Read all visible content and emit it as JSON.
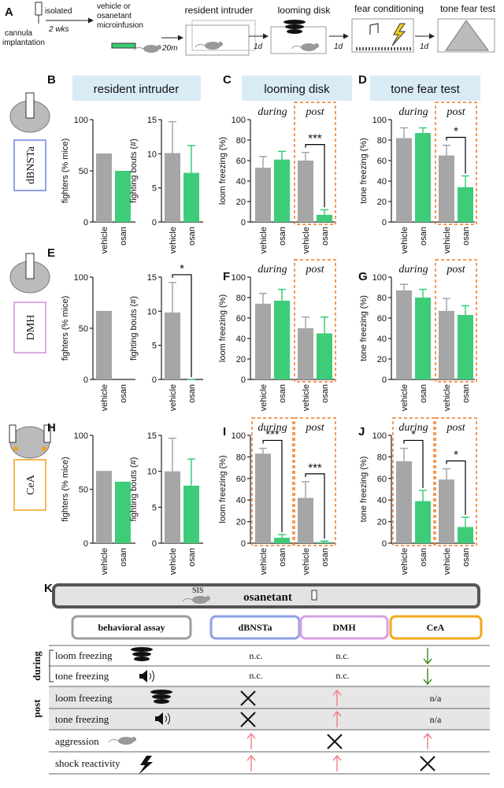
{
  "panel_a": {
    "letter": "A",
    "surgery": [
      "cannula",
      "implantation"
    ],
    "housing": "isolated",
    "duration": "2 wks",
    "treatment": [
      "vehicle or",
      "osanetant",
      "microinfusion"
    ],
    "delay": "20m",
    "steps": [
      "resident intruder",
      "looming disk",
      "fear conditioning",
      "tone fear test"
    ],
    "intervals": [
      "1d",
      "1d",
      "1d"
    ]
  },
  "row_headers": [
    "resident intruder",
    "looming disk",
    "tone fear test"
  ],
  "rows": [
    {
      "region": "dBNSTa",
      "border_color": "#6f83e3",
      "letters": [
        "B",
        "C",
        "D"
      ]
    },
    {
      "region": "DMH",
      "border_color": "#d68fe0",
      "letters": [
        "E",
        "F",
        "G"
      ]
    },
    {
      "region": "CeA",
      "border_color": "#f0a21c",
      "letters": [
        "H",
        "I",
        "J"
      ]
    }
  ],
  "chart_data": [
    {
      "type": "bar",
      "ylabel": "fighters (% mice)",
      "categories": [
        "vehicle",
        "osan"
      ],
      "values": [
        67,
        50
      ],
      "colors": [
        "#a6a6a6",
        "#3dcc78"
      ],
      "ylim": [
        0,
        100
      ],
      "yticks": [
        0,
        50,
        100
      ]
    },
    {
      "type": "bar",
      "ylabel": "fighting bouts (#)",
      "categories": [
        "vehicle",
        "osan"
      ],
      "values": [
        10.1,
        7.2
      ],
      "errors": [
        4.6,
        4
      ],
      "colors": [
        "#a6a6a6",
        "#3dcc78"
      ],
      "ylim": [
        0,
        15
      ],
      "yticks": [
        0,
        5,
        10,
        15
      ]
    },
    {
      "type": "bar",
      "ylabel": "loom freezing (%)",
      "colors": [
        "#a6a6a6",
        "#3dcc78"
      ],
      "ylim": [
        0,
        100
      ],
      "yticks": [
        0,
        20,
        40,
        60,
        80,
        100
      ],
      "groups": [
        {
          "label": "during",
          "boxed": false,
          "categories": [
            "vehicle",
            "osan"
          ],
          "values": [
            53,
            61
          ],
          "errors": [
            11,
            8
          ]
        },
        {
          "label": "post",
          "boxed": true,
          "categories": [
            "vehicle",
            "osan"
          ],
          "values": [
            60,
            7
          ],
          "errors": [
            8,
            5
          ],
          "annotation": "***"
        }
      ]
    },
    {
      "type": "bar",
      "ylabel": "tone freezing (%)",
      "colors": [
        "#a6a6a6",
        "#3dcc78"
      ],
      "ylim": [
        0,
        100
      ],
      "yticks": [
        0,
        20,
        40,
        60,
        80,
        100
      ],
      "groups": [
        {
          "label": "during",
          "boxed": false,
          "categories": [
            "vehicle",
            "osan"
          ],
          "values": [
            82,
            87
          ],
          "errors": [
            10,
            5
          ]
        },
        {
          "label": "post",
          "boxed": true,
          "categories": [
            "vehicle",
            "osan"
          ],
          "values": [
            65,
            34
          ],
          "errors": [
            10,
            11
          ],
          "annotation": "*"
        }
      ]
    },
    {
      "type": "bar",
      "ylabel": "fighters (% mice)",
      "categories": [
        "vehicle",
        "osan"
      ],
      "values": [
        67,
        0
      ],
      "colors": [
        "#a6a6a6",
        "#3dcc78"
      ],
      "ylim": [
        0,
        100
      ],
      "yticks": [
        0,
        50,
        100
      ]
    },
    {
      "type": "bar",
      "ylabel": "fighting bouts (#)",
      "categories": [
        "vehicle",
        "osan"
      ],
      "values": [
        9.8,
        0
      ],
      "errors": [
        4.4,
        0
      ],
      "annotation": "*",
      "colors": [
        "#a6a6a6",
        "#3dcc78"
      ],
      "ylim": [
        0,
        15
      ],
      "yticks": [
        0,
        5,
        10,
        15
      ]
    },
    {
      "type": "bar",
      "ylabel": "loom freezing (%)",
      "colors": [
        "#a6a6a6",
        "#3dcc78"
      ],
      "ylim": [
        0,
        100
      ],
      "yticks": [
        0,
        20,
        40,
        60,
        80,
        100
      ],
      "groups": [
        {
          "label": "during",
          "boxed": false,
          "categories": [
            "vehicle",
            "osan"
          ],
          "values": [
            74,
            77
          ],
          "errors": [
            10,
            11
          ]
        },
        {
          "label": "post",
          "boxed": true,
          "categories": [
            "vehicle",
            "osan"
          ],
          "values": [
            50,
            45
          ],
          "errors": [
            11,
            16
          ]
        }
      ]
    },
    {
      "type": "bar",
      "ylabel": "tone freezing (%)",
      "colors": [
        "#a6a6a6",
        "#3dcc78"
      ],
      "ylim": [
        0,
        100
      ],
      "yticks": [
        0,
        20,
        40,
        60,
        80,
        100
      ],
      "groups": [
        {
          "label": "during",
          "boxed": false,
          "categories": [
            "vehicle",
            "osan"
          ],
          "values": [
            87,
            80
          ],
          "errors": [
            6,
            8
          ]
        },
        {
          "label": "post",
          "boxed": true,
          "categories": [
            "vehicle",
            "osan"
          ],
          "values": [
            67,
            63
          ],
          "errors": [
            12,
            9
          ]
        }
      ]
    },
    {
      "type": "bar",
      "ylabel": "fighters (% mice)",
      "categories": [
        "vehicle",
        "osan"
      ],
      "values": [
        67,
        57
      ],
      "colors": [
        "#a6a6a6",
        "#3dcc78"
      ],
      "ylim": [
        0,
        100
      ],
      "yticks": [
        0,
        50,
        100
      ]
    },
    {
      "type": "bar",
      "ylabel": "fighting bouts (#)",
      "categories": [
        "vehicle",
        "osan"
      ],
      "values": [
        10,
        8
      ],
      "errors": [
        4.6,
        3.7
      ],
      "colors": [
        "#a6a6a6",
        "#3dcc78"
      ],
      "ylim": [
        0,
        15
      ],
      "yticks": [
        0,
        5,
        10,
        15
      ]
    },
    {
      "type": "bar",
      "ylabel": "loom freezing (%)",
      "colors": [
        "#a6a6a6",
        "#3dcc78"
      ],
      "ylim": [
        0,
        100
      ],
      "yticks": [
        0,
        20,
        40,
        60,
        80,
        100
      ],
      "groups": [
        {
          "label": "during",
          "boxed": true,
          "categories": [
            "vehicle",
            "osan"
          ],
          "values": [
            83,
            5
          ],
          "errors": [
            5,
            3
          ],
          "annotation": "***"
        },
        {
          "label": "post",
          "boxed": true,
          "categories": [
            "vehicle",
            "osan"
          ],
          "values": [
            42,
            1
          ],
          "errors": [
            15,
            1
          ],
          "annotation": "***"
        }
      ]
    },
    {
      "type": "bar",
      "ylabel": "tone freezing (%)",
      "colors": [
        "#a6a6a6",
        "#3dcc78"
      ],
      "ylim": [
        0,
        100
      ],
      "yticks": [
        0,
        20,
        40,
        60,
        80,
        100
      ],
      "groups": [
        {
          "label": "during",
          "boxed": true,
          "categories": [
            "vehicle",
            "osan"
          ],
          "values": [
            76,
            39
          ],
          "errors": [
            12,
            10
          ],
          "annotation": "*"
        },
        {
          "label": "post",
          "boxed": true,
          "categories": [
            "vehicle",
            "osan"
          ],
          "values": [
            59,
            15
          ],
          "errors": [
            10,
            9
          ],
          "annotation": "*"
        }
      ]
    }
  ],
  "panel_k": {
    "letter": "K",
    "sis": "SIS",
    "drug": "osanetant",
    "columns": [
      "behavioral assay",
      "dBNSTa",
      "DMH",
      "CeA"
    ],
    "sections": [
      "during",
      "post"
    ],
    "rows": [
      {
        "assay": "loom freezing",
        "cells": [
          "n.c.",
          "n.c."
        ]
      },
      {
        "assay": "tone freezing",
        "cells": [
          "n.c.",
          "n.c."
        ]
      },
      {
        "assay": "loom freezing",
        "cells": [
          "n/a"
        ]
      },
      {
        "assay": "tone freezing",
        "cells": [
          "n/a"
        ]
      },
      {
        "assay": "aggression"
      },
      {
        "assay": "shock reactivity"
      }
    ]
  }
}
